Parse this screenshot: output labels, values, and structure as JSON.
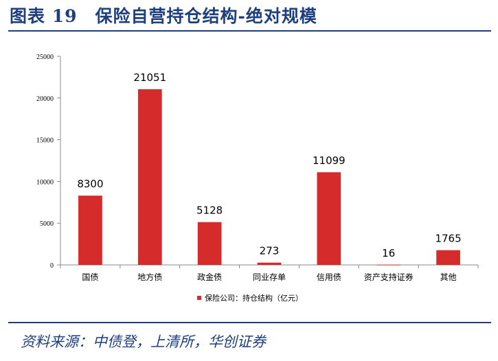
{
  "figure": {
    "title": "图表 19　保险自营持仓结构-绝对规模",
    "source": "资料来源：中债登，上清所，华创证券"
  },
  "colors": {
    "bar": "#d52b2b",
    "title": "#1e3f7f",
    "axis": "#888888"
  },
  "chart_data": {
    "type": "bar",
    "categories": [
      "国债",
      "地方债",
      "政金债",
      "同业存单",
      "信用债",
      "资产支持证券",
      "其他"
    ],
    "series": [
      {
        "name": "保险公司：持仓结构（亿元）",
        "values": [
          8300,
          21051,
          5128,
          273,
          11099,
          16,
          1765
        ]
      }
    ],
    "data_labels": [
      "8300",
      "21051",
      "5128",
      "273",
      "11099",
      "16",
      "1765"
    ],
    "ylim": [
      0,
      25000
    ],
    "yticks": [
      0,
      5000,
      10000,
      15000,
      20000,
      25000
    ],
    "ytick_labels": [
      "0",
      "5000",
      "10000",
      "15000",
      "20000",
      "25000"
    ],
    "grid": false,
    "legend_position": "bottom-center"
  }
}
